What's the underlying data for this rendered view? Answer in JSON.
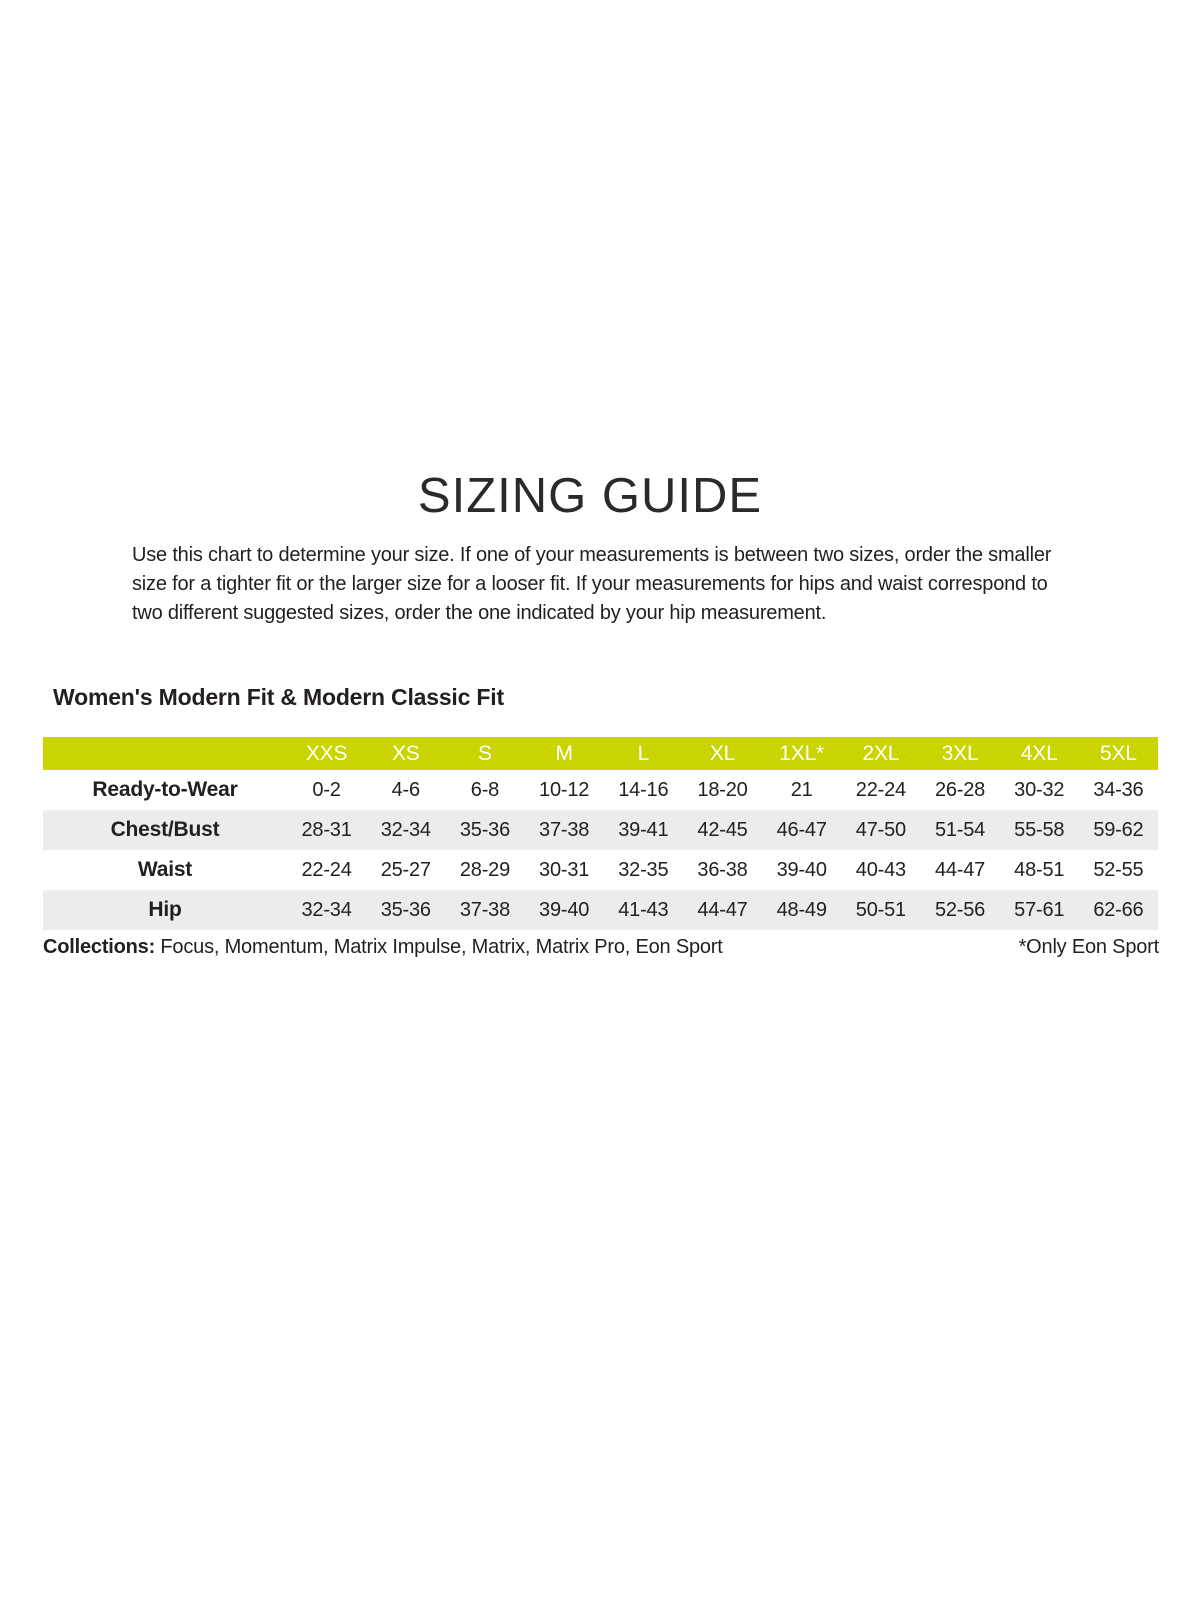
{
  "page": {
    "title": "SIZING GUIDE",
    "intro": "Use this chart to determine your size. If one of your measurements is between two sizes, order the smaller size for a tighter fit or the larger size for a looser fit. If your measurements for hips and waist correspond to two different suggested sizes, order the one indicated by your hip measurement."
  },
  "section": {
    "heading": "Women's Modern Fit & Modern Classic Fit"
  },
  "table": {
    "sizes": [
      "XXS",
      "XS",
      "S",
      "M",
      "L",
      "XL",
      "1XL*",
      "2XL",
      "3XL",
      "4XL",
      "5XL"
    ],
    "rows": [
      {
        "label": "Ready-to-Wear",
        "values": [
          "0-2",
          "4-6",
          "6-8",
          "10-12",
          "14-16",
          "18-20",
          "21",
          "22-24",
          "26-28",
          "30-32",
          "34-36"
        ]
      },
      {
        "label": "Chest/Bust",
        "values": [
          "28-31",
          "32-34",
          "35-36",
          "37-38",
          "39-41",
          "42-45",
          "46-47",
          "47-50",
          "51-54",
          "55-58",
          "59-62"
        ]
      },
      {
        "label": "Waist",
        "values": [
          "22-24",
          "25-27",
          "28-29",
          "30-31",
          "32-35",
          "36-38",
          "39-40",
          "40-43",
          "44-47",
          "48-51",
          "52-55"
        ]
      },
      {
        "label": "Hip",
        "values": [
          "32-34",
          "35-36",
          "37-38",
          "39-40",
          "41-43",
          "44-47",
          "48-49",
          "50-51",
          "52-56",
          "57-61",
          "62-66"
        ]
      }
    ]
  },
  "footer": {
    "collections_label": "Collections:",
    "collections_list": " Focus, Momentum, Matrix Impulse, Matrix, Matrix Pro, Eon Sport",
    "note": "*Only Eon Sport"
  },
  "colors": {
    "header_bg": "#cad400",
    "row_alt_bg": "#ececec",
    "text": "#231f20"
  }
}
